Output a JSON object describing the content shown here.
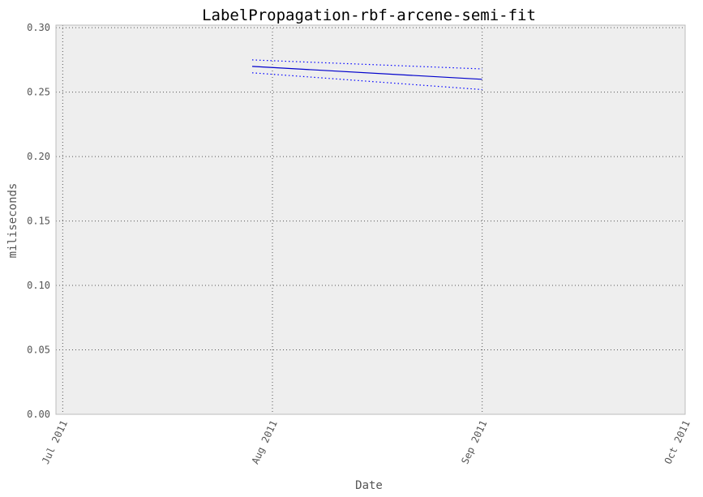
{
  "chart_data": {
    "type": "line",
    "title": "LabelPropagation-rbf-arcene-semi-fit",
    "xlabel": "Date",
    "ylabel": "miliseconds",
    "x_ticks": [
      "Jul 2011",
      "Aug 2011",
      "Sep 2011",
      "Oct 2011"
    ],
    "x_tick_dates": [
      "2011-07-01",
      "2011-08-01",
      "2011-09-01",
      "2011-10-01"
    ],
    "xlim": [
      "2011-06-30",
      "2011-10-01"
    ],
    "y_ticks": [
      "0.00",
      "0.05",
      "0.10",
      "0.15",
      "0.20",
      "0.25",
      "0.30"
    ],
    "y_tick_values": [
      0.0,
      0.05,
      0.1,
      0.15,
      0.2,
      0.25,
      0.3
    ],
    "ylim": [
      0.0,
      0.302
    ],
    "grid": true,
    "series": [
      {
        "style": "solid",
        "color": "#0000cc",
        "x": [
          "2011-07-29",
          "2011-09-01"
        ],
        "y": [
          0.27,
          0.26
        ]
      },
      {
        "style": "dotted",
        "color": "#0000ff",
        "x": [
          "2011-07-29",
          "2011-09-01"
        ],
        "y": [
          0.275,
          0.268
        ]
      },
      {
        "style": "dotted",
        "color": "#0000ff",
        "x": [
          "2011-07-29",
          "2011-09-01"
        ],
        "y": [
          0.265,
          0.252
        ]
      }
    ],
    "colors": {
      "plot_background": "#eeeeee",
      "frame": "#bcbcbc",
      "grid": "#555555"
    }
  }
}
